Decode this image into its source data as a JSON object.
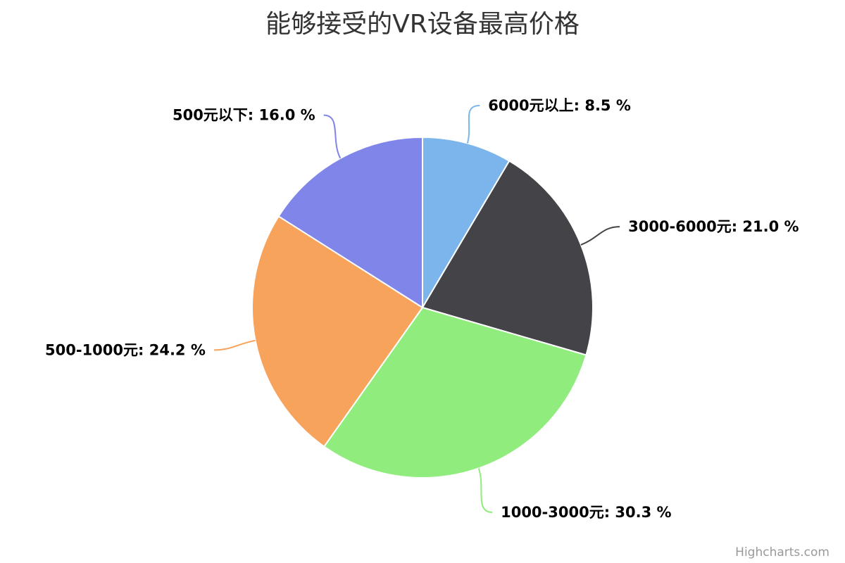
{
  "chart_data": {
    "type": "pie",
    "title": "能够接受的VR设备最高价格",
    "slices": [
      {
        "name": "6000元以上",
        "value": 8.5,
        "label": "6000元以上: 8.5 %",
        "color": "#7cb5ec"
      },
      {
        "name": "3000-6000元",
        "value": 21.0,
        "label": "3000-6000元: 21.0 %",
        "color": "#434348"
      },
      {
        "name": "1000-3000元",
        "value": 30.3,
        "label": "1000-3000元: 30.3 %",
        "color": "#90ed7d"
      },
      {
        "name": "500-1000元",
        "value": 24.2,
        "label": "500-1000元: 24.2 %",
        "color": "#f7a35c"
      },
      {
        "name": "500元以下",
        "value": 16.0,
        "label": "500元以下: 16.0 %",
        "color": "#8085e9"
      }
    ],
    "unit": "%"
  },
  "credits": "Highcharts.com"
}
